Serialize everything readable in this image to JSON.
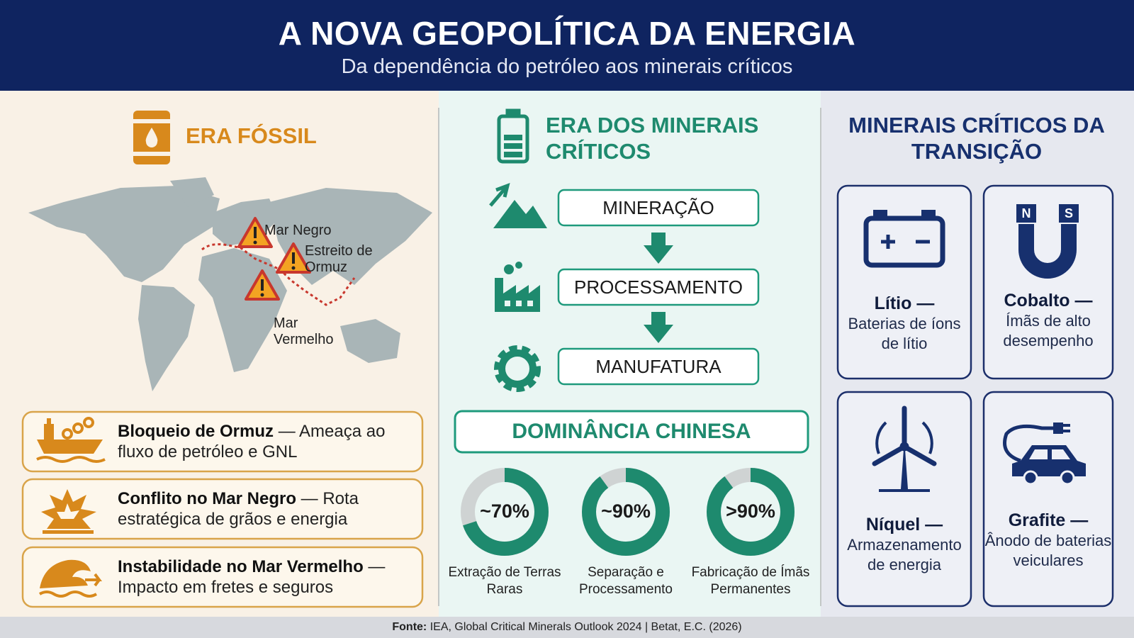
{
  "header": {
    "title": "A NOVA GEOPOLÍTICA DA ENERGIA",
    "subtitle": "Da dependência do petróleo aos minerais críticos"
  },
  "fossil": {
    "title": "ERA FÓSSIL",
    "map_labels": [
      "Mar Negro",
      "Estreito de Ormuz",
      "Mar Vermelho"
    ],
    "cards": [
      {
        "title": "Bloqueio de Ormuz",
        "text": "— Ameaça ao fluxo de petróleo e GNL"
      },
      {
        "title": "Conflito no Mar Negro",
        "text": "— Rota estratégica de grãos e energia"
      },
      {
        "title": "Instabilidade no Mar Vermelho",
        "text": "— Impacto em fretes e seguros"
      }
    ]
  },
  "minerals_era": {
    "title": "ERA DOS MINERAIS CRÍTICOS",
    "steps": [
      "MINERAÇÃO",
      "PROCESSAMENTO",
      "MANUFATURA"
    ],
    "dominance_title": "DOMINÂNCIA CHINESA",
    "donuts": [
      {
        "value": 70,
        "label": "~70%",
        "caption": "Extração de Terras Raras"
      },
      {
        "value": 90,
        "label": "~90%",
        "caption": "Separação e Processamento"
      },
      {
        "value": 90,
        "label": ">90%",
        "caption": "Fabricação de Ímãs Permanentes"
      }
    ]
  },
  "transition": {
    "title": "MINERAIS CRÍTICOS DA TRANSIÇÃO",
    "items": [
      {
        "name": "Lítio —",
        "text": "Baterias de íons de lítio"
      },
      {
        "name": "Cobalto —",
        "text": "Ímãs de alto desempenho"
      },
      {
        "name": "Níquel —",
        "text": "Armazenamento de energia"
      },
      {
        "name": "Grafite —",
        "text": "Ânodo de baterias veiculares"
      }
    ]
  },
  "footer": {
    "label": "Fonte:",
    "text": "IEA, Global Critical Minerals Outlook 2024 | Betat, E.C. (2026)"
  }
}
